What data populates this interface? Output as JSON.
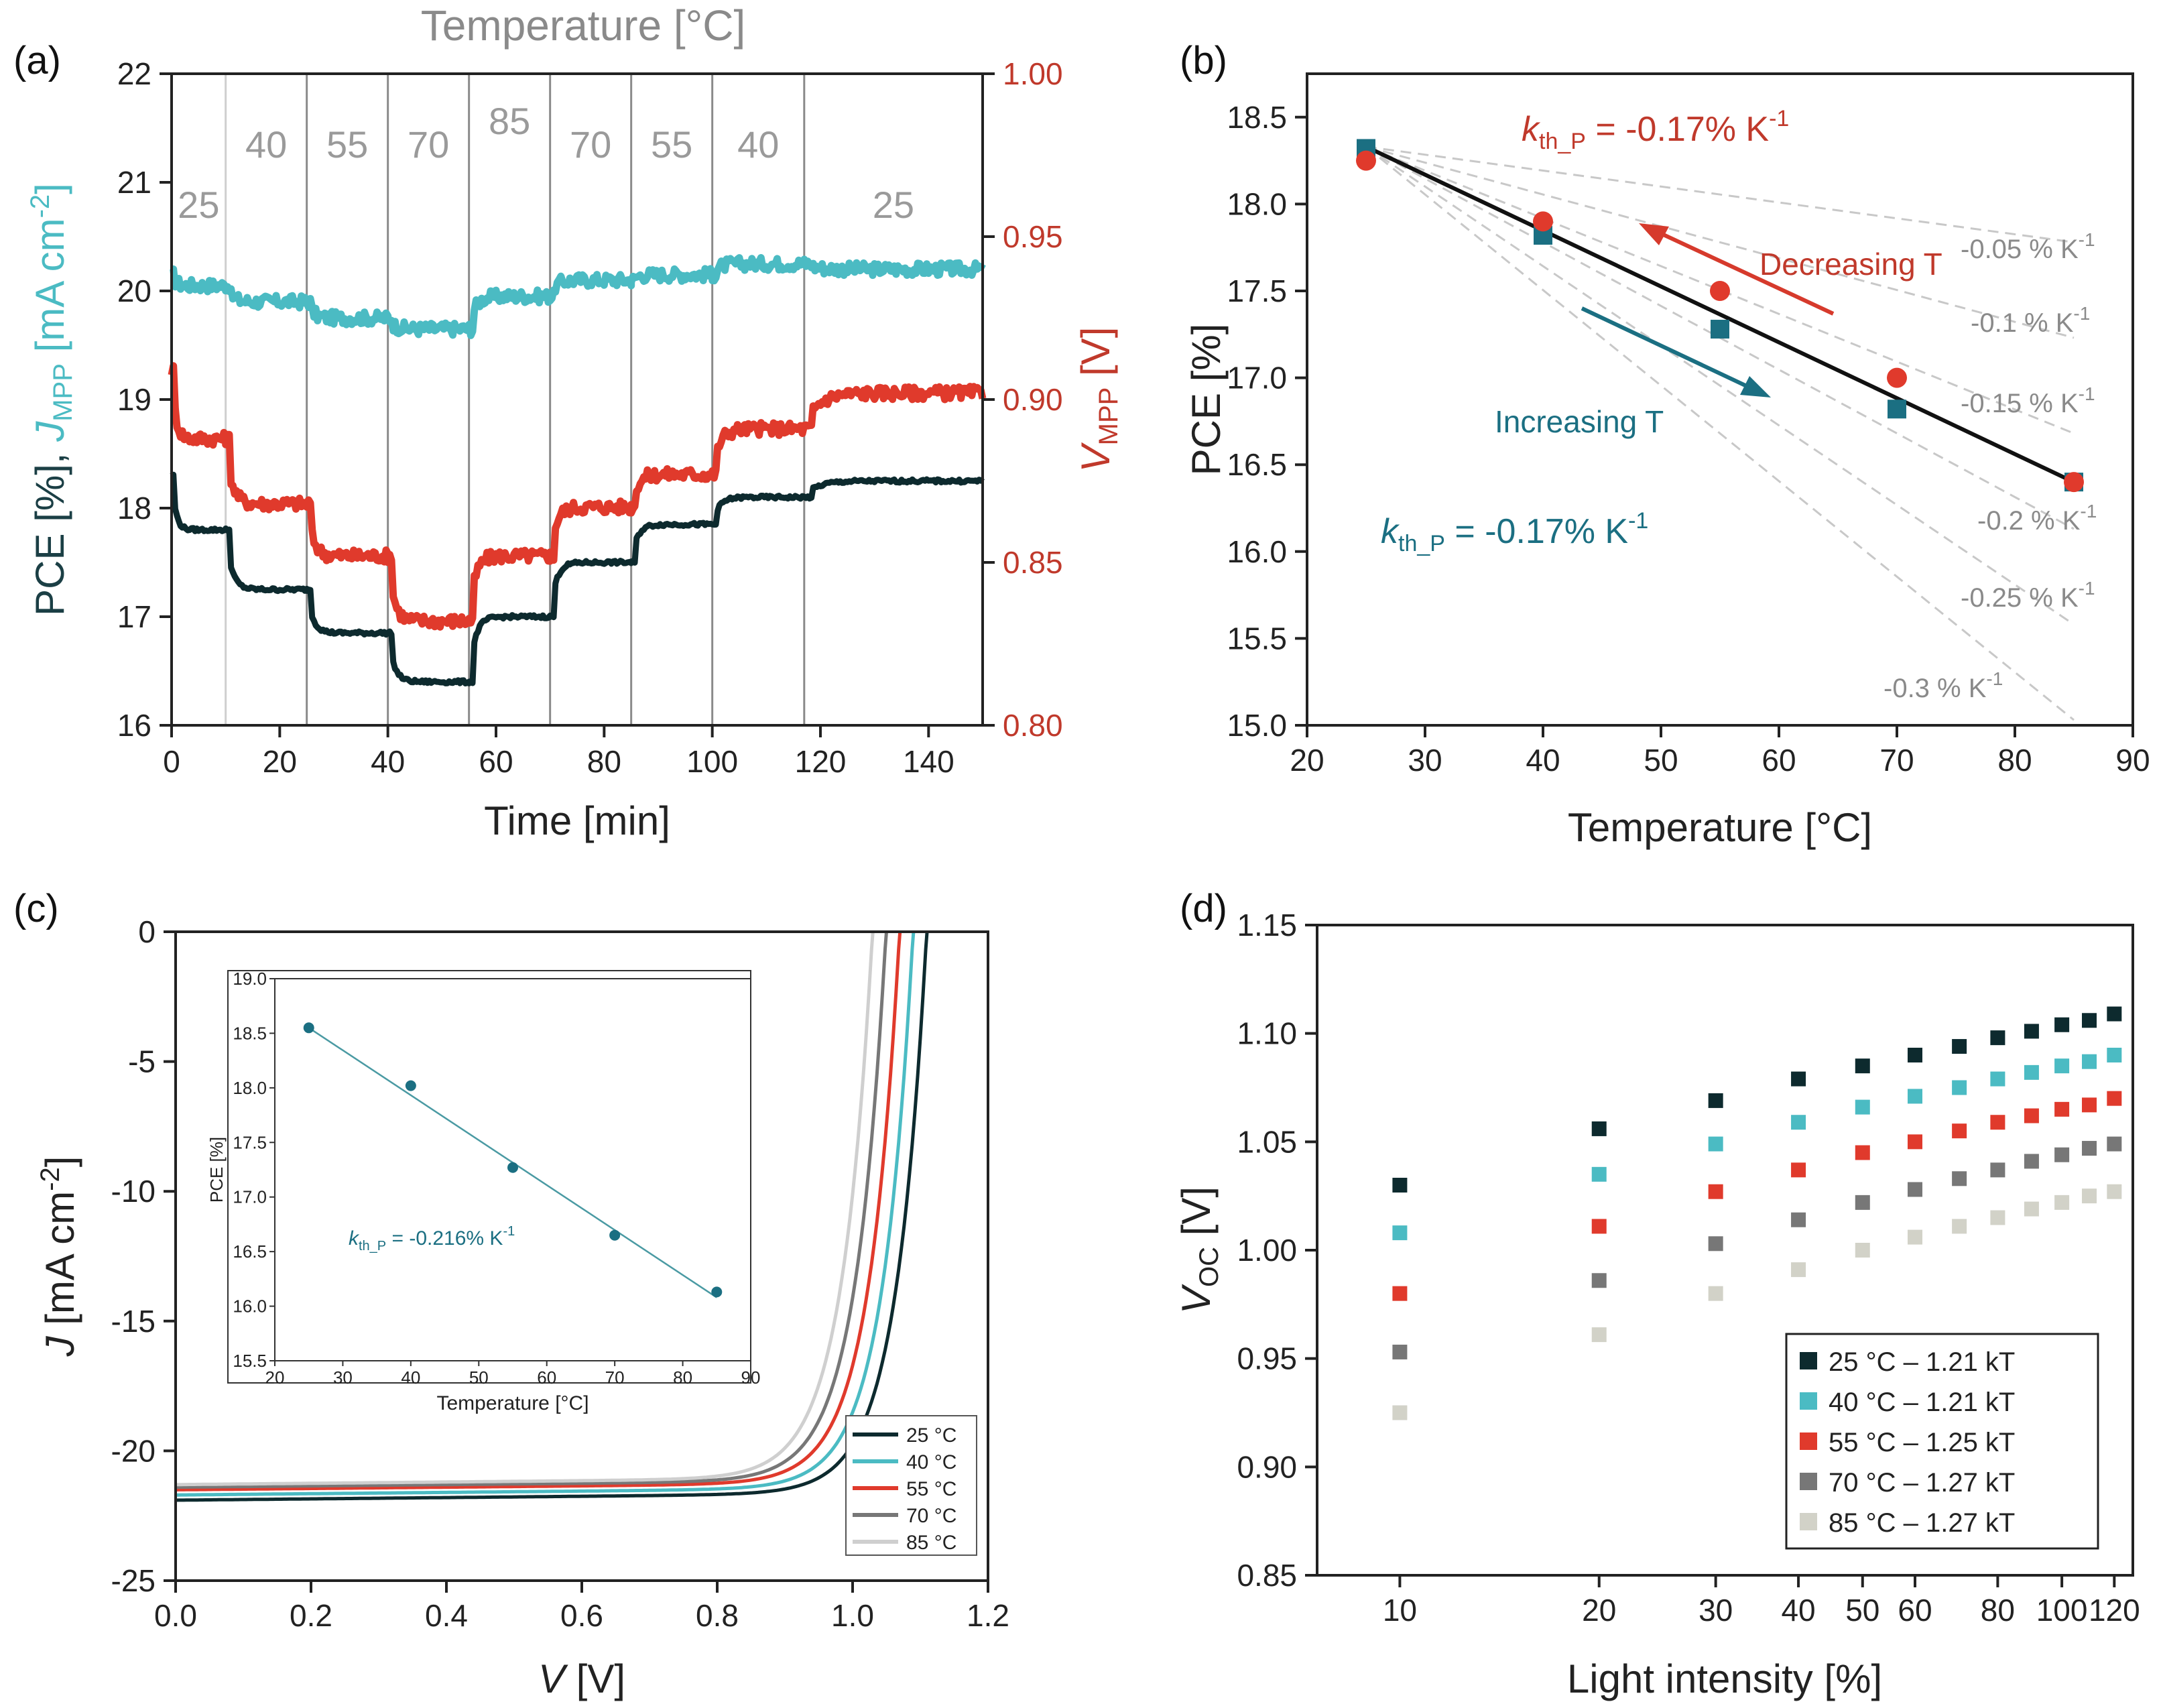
{
  "colors": {
    "teal": "#4bbbc3",
    "darkteal": "#1b6f82",
    "red": "#e03a2c",
    "darkred": "#c0392b",
    "black": "#0d2a2e",
    "gray": "#999999",
    "lightgray": "#cfcfcf",
    "grid": "#9a9a9a"
  },
  "chart_data": [
    {
      "panel": "(a)",
      "type": "line",
      "top_label": "Temperature [°C]",
      "xlabel": "Time [min]",
      "ylabel_left": "PCE [%], J_MPP [mA cm^-2]",
      "ylabel_left_parts": {
        "main": "PCE [%], ",
        "j": "J",
        "sub": "MPP",
        "unit": " [mA cm",
        "sup": "-2",
        "close": "]"
      },
      "ylabel_right_parts": {
        "v": "V",
        "sub": "MPP",
        "unit": " [V]"
      },
      "xlim": [
        0,
        150
      ],
      "ylim_left": [
        16,
        22
      ],
      "ylim_right": [
        0.8,
        1.0
      ],
      "xticks": [
        "0",
        "20",
        "40",
        "60",
        "80",
        "100",
        "120",
        "140"
      ],
      "yticks_left": [
        "16",
        "17",
        "18",
        "19",
        "20",
        "21",
        "22"
      ],
      "yticks_right": [
        "0.80",
        "0.85",
        "0.90",
        "0.95",
        "1.00"
      ],
      "segment_boundaries": [
        10,
        25,
        40,
        55,
        70,
        85,
        100,
        117
      ],
      "temperature_labels": [
        {
          "t": 5,
          "label": "25"
        },
        {
          "t": 17.5,
          "label": "40"
        },
        {
          "t": 32.5,
          "label": "55"
        },
        {
          "t": 47.5,
          "label": "70"
        },
        {
          "t": 62.5,
          "label": "85"
        },
        {
          "t": 77.5,
          "label": "70"
        },
        {
          "t": 92.5,
          "label": "55"
        },
        {
          "t": 108.5,
          "label": "40"
        },
        {
          "t": 133.5,
          "label": "25"
        }
      ],
      "series": [
        {
          "name": "J_MPP",
          "axis": "left",
          "color": "#4bbbc3",
          "x": [
            0,
            10,
            25,
            40,
            55,
            70,
            85,
            100,
            117,
            150
          ],
          "y": [
            20.15,
            20.05,
            19.9,
            19.75,
            19.65,
            19.95,
            20.1,
            20.15,
            20.25,
            20.2
          ]
        },
        {
          "name": "V_MPP",
          "axis": "right",
          "color": "#e03a2c",
          "x": [
            0,
            10,
            25,
            40,
            55,
            70,
            85,
            100,
            117,
            150
          ],
          "y": [
            0.909,
            0.888,
            0.868,
            0.852,
            0.832,
            0.852,
            0.867,
            0.877,
            0.891,
            0.902
          ]
        },
        {
          "name": "PCE",
          "axis": "left",
          "color": "#0d2a2e",
          "x": [
            0,
            10,
            25,
            40,
            55,
            70,
            85,
            100,
            117,
            150
          ],
          "y": [
            18.3,
            17.8,
            17.25,
            16.85,
            16.4,
            17.0,
            17.5,
            17.85,
            18.1,
            18.25
          ]
        }
      ]
    },
    {
      "panel": "(b)",
      "type": "scatter",
      "xlabel": "Temperature [°C]",
      "ylabel": "PCE [%]",
      "xlim": [
        20,
        90
      ],
      "ylim": [
        15.0,
        18.75
      ],
      "xticks": [
        "20",
        "30",
        "40",
        "50",
        "60",
        "70",
        "80",
        "90"
      ],
      "yticks": [
        "15.0",
        "15.5",
        "16.0",
        "16.5",
        "17.0",
        "17.5",
        "18.0",
        "18.5"
      ],
      "series": [
        {
          "name": "Increasing T",
          "color": "#1b6f82",
          "marker": "square",
          "x": [
            25,
            40,
            55,
            70,
            85
          ],
          "y": [
            18.32,
            17.82,
            17.28,
            16.82,
            16.4
          ]
        },
        {
          "name": "Decreasing T",
          "color": "#e03a2c",
          "marker": "circle",
          "x": [
            25,
            40,
            55,
            70,
            85
          ],
          "y": [
            18.25,
            17.9,
            17.5,
            17.0,
            16.4
          ]
        }
      ],
      "fit_line": {
        "x": [
          25,
          85
        ],
        "y": [
          18.33,
          16.4
        ]
      },
      "reference_slopes": [
        {
          "label": "-0.05 % K-1",
          "text": "-0.05 % K",
          "sup": "-1",
          "slope_pct": -0.05
        },
        {
          "label": "-0.1 % K-1",
          "text": "-0.1 % K",
          "sup": "-1",
          "slope_pct": -0.1
        },
        {
          "label": "-0.15 % K-1",
          "text": "-0.15 % K",
          "sup": "-1",
          "slope_pct": -0.15
        },
        {
          "label": "-0.2 % K-1",
          "text": "-0.2 % K",
          "sup": "-1",
          "slope_pct": -0.2
        },
        {
          "label": "-0.25 % K-1",
          "text": "-0.25 % K",
          "sup": "-1",
          "slope_pct": -0.25
        },
        {
          "label": "-0.3 % K-1",
          "text": "-0.3 % K",
          "sup": "-1",
          "slope_pct": -0.3
        }
      ],
      "annotations": {
        "k_red": {
          "k": "k",
          "sub": "th_P",
          "rest": " = -0.17% K",
          "sup": "-1"
        },
        "k_teal": {
          "k": "k",
          "sub": "th_P",
          "rest": " = -0.17% K",
          "sup": "-1"
        },
        "decreasing": "Decreasing T",
        "increasing": "Increasing T"
      }
    },
    {
      "panel": "(c)",
      "type": "line",
      "xlabel_parts": {
        "v": "V",
        "unit": " [V]"
      },
      "ylabel_parts": {
        "j": "J",
        "unit": " [mA cm",
        "sup": "-2",
        "close": "]"
      },
      "xlim": [
        0.0,
        1.2
      ],
      "ylim": [
        -25,
        0
      ],
      "xticks": [
        "0.0",
        "0.2",
        "0.4",
        "0.6",
        "0.8",
        "1.0",
        "1.2"
      ],
      "yticks": [
        "-25",
        "-20",
        "-15",
        "-10",
        "-5",
        "0"
      ],
      "series": [
        {
          "name": "25 °C",
          "color": "#0d2a2e",
          "jsc": -21.9,
          "voc": 1.11,
          "v0": 1.04
        },
        {
          "name": "40 °C",
          "color": "#4bbbc3",
          "jsc": -21.7,
          "voc": 1.09,
          "v0": 1.02
        },
        {
          "name": "55 °C",
          "color": "#e03a2c",
          "jsc": -21.5,
          "voc": 1.07,
          "v0": 1.0
        },
        {
          "name": "70 °C",
          "color": "#777777",
          "jsc": -21.4,
          "voc": 1.05,
          "v0": 0.98
        },
        {
          "name": "85 °C",
          "color": "#cfcfcf",
          "jsc": -21.3,
          "voc": 1.03,
          "v0": 0.96
        }
      ],
      "inset": {
        "type": "scatter",
        "xlabel": "Temperature [°C]",
        "ylabel": "PCE [%]",
        "xlim": [
          20,
          90
        ],
        "ylim": [
          15.5,
          19.0
        ],
        "xticks": [
          "20",
          "30",
          "40",
          "50",
          "60",
          "70",
          "80",
          "90"
        ],
        "yticks": [
          "15.5",
          "16.0",
          "16.5",
          "17.0",
          "17.5",
          "18.0",
          "18.5",
          "19.0"
        ],
        "x": [
          25,
          40,
          55,
          70,
          85
        ],
        "y": [
          18.55,
          18.02,
          17.27,
          16.65,
          16.13
        ],
        "fit_line": {
          "x": [
            25,
            85
          ],
          "y": [
            18.55,
            16.08
          ]
        },
        "annotation": {
          "k": "k",
          "sub": "th_P",
          "rest": " = -0.216% K",
          "sup": "-1"
        }
      }
    },
    {
      "panel": "(d)",
      "type": "scatter",
      "xscale": "log",
      "xlabel": "Light intensity [%]",
      "ylabel_parts": {
        "v": "V",
        "sub": "OC",
        "unit": " [V]"
      },
      "xlim": [
        7.5,
        128
      ],
      "ylim": [
        0.85,
        1.15
      ],
      "xticks": [
        "10",
        "20",
        "30",
        "40",
        "50",
        "60",
        "80",
        "100",
        "120"
      ],
      "xtick_values": [
        10,
        20,
        30,
        40,
        50,
        60,
        80,
        100,
        120
      ],
      "yticks": [
        "0.85",
        "0.90",
        "0.95",
        "1.00",
        "1.05",
        "1.10",
        "1.15"
      ],
      "x": [
        10,
        20,
        30,
        40,
        50,
        60,
        70,
        80,
        90,
        100,
        110,
        120
      ],
      "series": [
        {
          "name": "25 °C – 1.21 kT",
          "color": "#0d2a2e",
          "y": [
            1.03,
            1.056,
            1.069,
            1.079,
            1.085,
            1.09,
            1.094,
            1.098,
            1.101,
            1.104,
            1.106,
            1.109
          ]
        },
        {
          "name": "40 °C – 1.21 kT",
          "color": "#4bbbc3",
          "y": [
            1.008,
            1.035,
            1.049,
            1.059,
            1.066,
            1.071,
            1.075,
            1.079,
            1.082,
            1.085,
            1.087,
            1.09
          ]
        },
        {
          "name": "55 °C – 1.25 kT",
          "color": "#e03a2c",
          "y": [
            0.98,
            1.011,
            1.027,
            1.037,
            1.045,
            1.05,
            1.055,
            1.059,
            1.062,
            1.065,
            1.067,
            1.07
          ]
        },
        {
          "name": "70 °C – 1.27 kT",
          "color": "#777777",
          "y": [
            0.953,
            0.986,
            1.003,
            1.014,
            1.022,
            1.028,
            1.033,
            1.037,
            1.041,
            1.044,
            1.047,
            1.049
          ]
        },
        {
          "name": "85 °C – 1.27 kT",
          "color": "#d2d2c8",
          "y": [
            0.925,
            0.961,
            0.98,
            0.991,
            1.0,
            1.006,
            1.011,
            1.015,
            1.019,
            1.022,
            1.025,
            1.027
          ]
        }
      ]
    }
  ]
}
